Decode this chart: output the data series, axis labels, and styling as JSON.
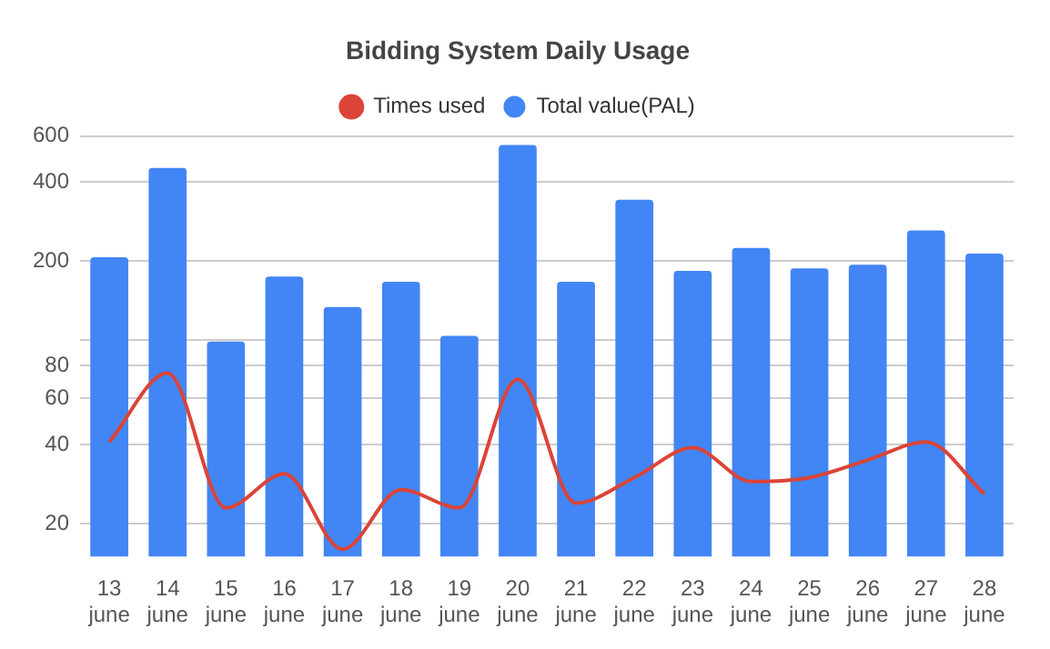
{
  "chart_data": {
    "type": "bar",
    "title": "Bidding System Daily Usage",
    "categories": [
      "13 june",
      "14 june",
      "15 june",
      "16 june",
      "17 june",
      "18 june",
      "19 june",
      "20 june",
      "21 june",
      "22 june",
      "23 june",
      "24 june",
      "25 june",
      "26 june",
      "27 june",
      "28 june"
    ],
    "series": [
      {
        "name": "Total value(PAL)",
        "color": "#4285f4",
        "values": [
          207,
          453,
          99,
          175,
          134,
          167,
          104,
          554,
          167,
          343,
          184,
          225,
          188,
          194,
          262,
          214
        ]
      },
      {
        "name": "Times used",
        "type": "line",
        "color": "#db4437",
        "values": [
          41,
          75,
          23,
          31,
          16,
          27,
          23,
          71,
          24,
          30,
          39,
          29,
          30,
          35,
          41,
          26
        ]
      }
    ],
    "log": true,
    "ylim": [
      15,
      600
    ],
    "yticks": [
      20,
      40,
      60,
      80,
      {
        "value": 100,
        "label": null
      },
      200,
      400,
      600
    ],
    "grid": "y",
    "legend": "top",
    "marker": "none",
    "line_style": "solid"
  }
}
